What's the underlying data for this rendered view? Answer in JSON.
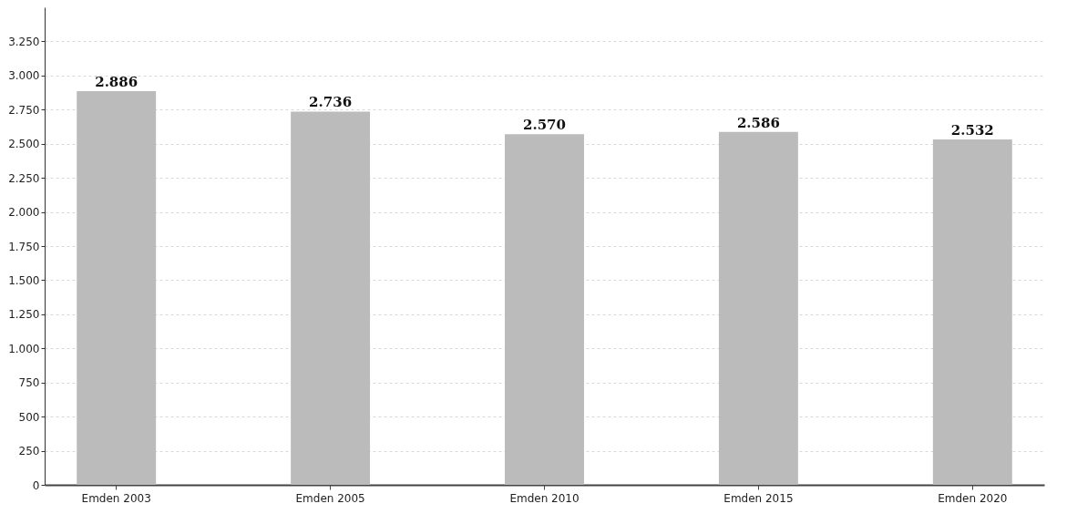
{
  "chart_data": {
    "type": "bar",
    "categories": [
      "Emden 2003",
      "Emden 2005",
      "Emden 2010",
      "Emden 2015",
      "Emden 2020"
    ],
    "values": [
      2886,
      2736,
      2570,
      2586,
      2532
    ],
    "value_labels": [
      "2.886",
      "2.736",
      "2.570",
      "2.586",
      "2.532"
    ],
    "color": "#bbbbbb",
    "ylim": [
      0,
      3500
    ],
    "yticks": [
      {
        "value": 0,
        "label": "0"
      },
      {
        "value": 250,
        "label": "250"
      },
      {
        "value": 500,
        "label": "500"
      },
      {
        "value": 750,
        "label": "750"
      },
      {
        "value": 1000,
        "label": "1.000"
      },
      {
        "value": 1250,
        "label": "1.250"
      },
      {
        "value": 1500,
        "label": "1.500"
      },
      {
        "value": 1750,
        "label": "1.750"
      },
      {
        "value": 2000,
        "label": "2.000"
      },
      {
        "value": 2250,
        "label": "2.250"
      },
      {
        "value": 2500,
        "label": "2.500"
      },
      {
        "value": 2750,
        "label": "2.750"
      },
      {
        "value": 3000,
        "label": "3.000"
      },
      {
        "value": 3250,
        "label": "3.250"
      }
    ],
    "grid": "y"
  }
}
